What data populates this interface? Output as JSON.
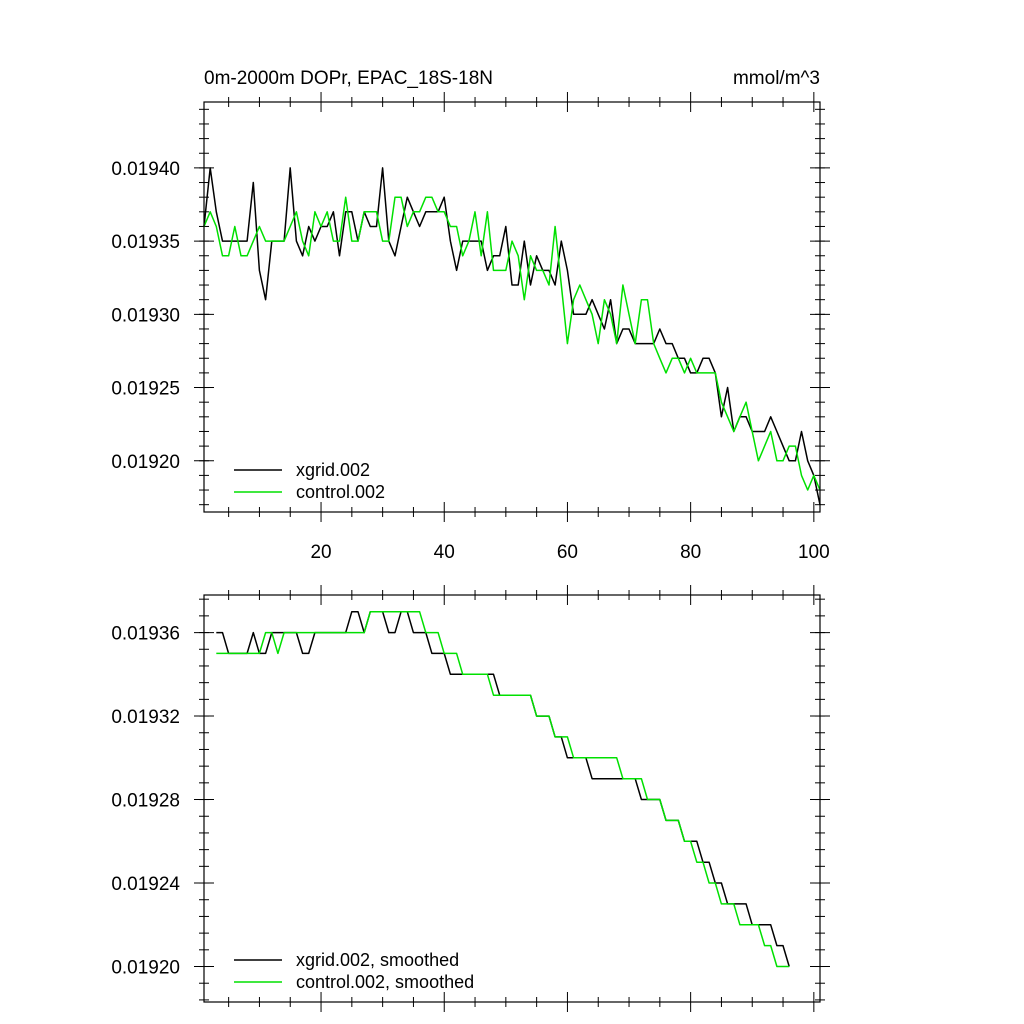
{
  "colors": {
    "xgrid": "#000000",
    "control": "#00e000"
  },
  "chart_data": [
    {
      "type": "line",
      "title": "0m-2000m DOPr, EPAC_18S-18N",
      "units": "mmol/m^3",
      "xlim": [
        1,
        101
      ],
      "ylim": [
        0.019165,
        0.019445
      ],
      "xticks": [
        20,
        40,
        60,
        80,
        100
      ],
      "xtick_labels": [
        "20",
        "40",
        "60",
        "80",
        "100"
      ],
      "yticks": [
        0.0192,
        0.01925,
        0.0193,
        0.01935,
        0.0194
      ],
      "ytick_labels": [
        "0.01920",
        "0.01925",
        "0.01930",
        "0.01935",
        "0.01940"
      ],
      "legend_position": "bottom-left",
      "series": [
        {
          "name": "xgrid.002",
          "color": "#000000",
          "x_start": 1,
          "values": [
            0.01936,
            0.0194,
            0.01937,
            0.01935,
            0.01935,
            0.01935,
            0.01935,
            0.01935,
            0.01939,
            0.01933,
            0.01931,
            0.01935,
            0.01935,
            0.01935,
            0.0194,
            0.01935,
            0.01934,
            0.01936,
            0.01935,
            0.01936,
            0.01936,
            0.01937,
            0.01934,
            0.01937,
            0.01937,
            0.01935,
            0.01937,
            0.01936,
            0.01936,
            0.0194,
            0.01935,
            0.01934,
            0.01936,
            0.01938,
            0.01937,
            0.01936,
            0.01937,
            0.01937,
            0.01937,
            0.01938,
            0.01935,
            0.01933,
            0.01935,
            0.01935,
            0.01935,
            0.01935,
            0.01933,
            0.01934,
            0.01934,
            0.01936,
            0.01932,
            0.01932,
            0.01935,
            0.01932,
            0.01934,
            0.01933,
            0.01933,
            0.01932,
            0.01935,
            0.01933,
            0.0193,
            0.0193,
            0.0193,
            0.01931,
            0.0193,
            0.01929,
            0.01931,
            0.01928,
            0.01929,
            0.01929,
            0.01928,
            0.01928,
            0.01928,
            0.01928,
            0.01929,
            0.01928,
            0.01928,
            0.01927,
            0.01927,
            0.01926,
            0.01926,
            0.01927,
            0.01927,
            0.01926,
            0.01923,
            0.01925,
            0.01922,
            0.01923,
            0.01923,
            0.01922,
            0.01922,
            0.01922,
            0.01923,
            0.01922,
            0.01921,
            0.0192,
            0.0192,
            0.01922,
            0.0192,
            0.01919,
            0.01917
          ]
        },
        {
          "name": "control.002",
          "color": "#00e000",
          "x_start": 1,
          "values": [
            0.01936,
            0.01937,
            0.01936,
            0.01934,
            0.01934,
            0.01936,
            0.01934,
            0.01934,
            0.01935,
            0.01936,
            0.01935,
            0.01935,
            0.01935,
            0.01935,
            0.01936,
            0.01937,
            0.01935,
            0.01934,
            0.01937,
            0.01936,
            0.01937,
            0.01935,
            0.01935,
            0.01938,
            0.01935,
            0.01935,
            0.01937,
            0.01937,
            0.01937,
            0.01935,
            0.01935,
            0.01938,
            0.01938,
            0.01936,
            0.01937,
            0.01937,
            0.01938,
            0.01938,
            0.01937,
            0.01937,
            0.01936,
            0.01936,
            0.01934,
            0.01935,
            0.01937,
            0.01934,
            0.01937,
            0.01933,
            0.01933,
            0.01933,
            0.01935,
            0.01934,
            0.01931,
            0.01934,
            0.01933,
            0.01933,
            0.01932,
            0.01936,
            0.01932,
            0.01928,
            0.01931,
            0.01932,
            0.01931,
            0.0193,
            0.01928,
            0.01931,
            0.0193,
            0.01928,
            0.01932,
            0.0193,
            0.01928,
            0.01931,
            0.01931,
            0.01928,
            0.01927,
            0.01926,
            0.01927,
            0.01927,
            0.01926,
            0.01927,
            0.01926,
            0.01926,
            0.01926,
            0.01926,
            0.01924,
            0.01923,
            0.01922,
            0.01923,
            0.01924,
            0.01922,
            0.0192,
            0.01921,
            0.01922,
            0.0192,
            0.0192,
            0.01921,
            0.01921,
            0.01919,
            0.01918,
            0.01919,
            0.01918
          ]
        }
      ]
    },
    {
      "type": "line",
      "title": "",
      "units": "",
      "xlim": [
        1,
        101
      ],
      "ylim": [
        0.019183,
        0.019378
      ],
      "xticks": [
        20,
        40,
        60,
        80,
        100
      ],
      "xtick_labels": [],
      "yticks": [
        0.0192,
        0.01924,
        0.01928,
        0.01932,
        0.01936
      ],
      "ytick_labels": [
        "0.01920",
        "0.01924",
        "0.01928",
        "0.01932",
        "0.01936"
      ],
      "legend_position": "bottom-left",
      "series": [
        {
          "name": "xgrid.002, smoothed",
          "color": "#000000",
          "x_start": 3,
          "values": [
            0.01936,
            0.01936,
            0.01935,
            0.01935,
            0.01935,
            0.01935,
            0.01936,
            0.01935,
            0.01935,
            0.01936,
            0.01936,
            0.01936,
            0.01936,
            0.01936,
            0.01935,
            0.01935,
            0.01936,
            0.01936,
            0.01936,
            0.01936,
            0.01936,
            0.01936,
            0.01937,
            0.01937,
            0.01936,
            0.01937,
            0.01937,
            0.01937,
            0.01936,
            0.01936,
            0.01937,
            0.01937,
            0.01936,
            0.01936,
            0.01936,
            0.01935,
            0.01935,
            0.01935,
            0.01934,
            0.01934,
            0.01934,
            0.01934,
            0.01934,
            0.01934,
            0.01934,
            0.01934,
            0.01933,
            0.01933,
            0.01933,
            0.01933,
            0.01933,
            0.01933,
            0.01932,
            0.01932,
            0.01932,
            0.01931,
            0.01931,
            0.0193,
            0.0193,
            0.0193,
            0.0193,
            0.01929,
            0.01929,
            0.01929,
            0.01929,
            0.01929,
            0.01929,
            0.01929,
            0.01929,
            0.01928,
            0.01928,
            0.01928,
            0.01928,
            0.01927,
            0.01927,
            0.01927,
            0.01926,
            0.01926,
            0.01926,
            0.01925,
            0.01925,
            0.01924,
            0.01924,
            0.01923,
            0.01923,
            0.01923,
            0.01923,
            0.01922,
            0.01922,
            0.01922,
            0.01922,
            0.01921,
            0.01921,
            0.0192
          ]
        },
        {
          "name": "control.002, smoothed",
          "color": "#00e000",
          "x_start": 3,
          "values": [
            0.01935,
            0.01935,
            0.01935,
            0.01935,
            0.01935,
            0.01935,
            0.01935,
            0.01935,
            0.01936,
            0.01936,
            0.01935,
            0.01936,
            0.01936,
            0.01936,
            0.01936,
            0.01936,
            0.01936,
            0.01936,
            0.01936,
            0.01936,
            0.01936,
            0.01936,
            0.01936,
            0.01936,
            0.01936,
            0.01937,
            0.01937,
            0.01937,
            0.01937,
            0.01937,
            0.01937,
            0.01937,
            0.01937,
            0.01937,
            0.01936,
            0.01936,
            0.01936,
            0.01935,
            0.01935,
            0.01935,
            0.01934,
            0.01934,
            0.01934,
            0.01934,
            0.01934,
            0.01933,
            0.01933,
            0.01933,
            0.01933,
            0.01933,
            0.01933,
            0.01933,
            0.01932,
            0.01932,
            0.01932,
            0.01931,
            0.01931,
            0.01931,
            0.0193,
            0.0193,
            0.0193,
            0.0193,
            0.0193,
            0.0193,
            0.0193,
            0.0193,
            0.01929,
            0.01929,
            0.01929,
            0.01929,
            0.01928,
            0.01928,
            0.01928,
            0.01927,
            0.01927,
            0.01927,
            0.01926,
            0.01926,
            0.01925,
            0.01925,
            0.01924,
            0.01924,
            0.01923,
            0.01923,
            0.01923,
            0.01922,
            0.01922,
            0.01922,
            0.01922,
            0.01921,
            0.01921,
            0.0192,
            0.0192,
            0.0192
          ]
        }
      ]
    }
  ]
}
